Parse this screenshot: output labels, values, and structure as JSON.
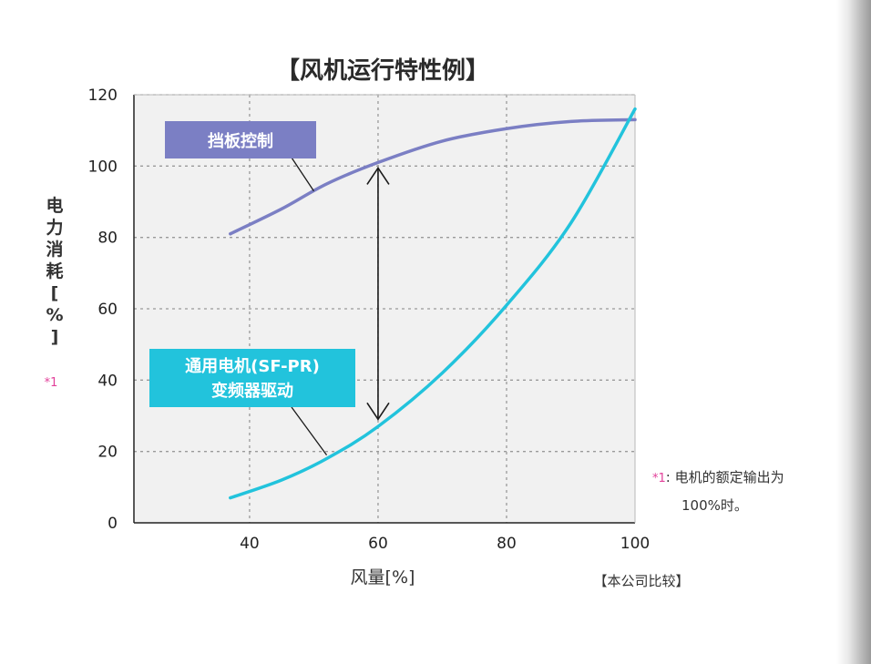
{
  "chart_data": {
    "type": "line",
    "title": "【风机运行特性例】",
    "xlabel": "风量[%]",
    "ylabel": "电力消耗[%]",
    "ylabel_note": "*1",
    "xlim": [
      22,
      100
    ],
    "ylim": [
      0,
      120
    ],
    "x_ticks": [
      40,
      60,
      80,
      100
    ],
    "y_ticks": [
      0,
      20,
      40,
      60,
      80,
      100,
      120
    ],
    "grid": true,
    "series": [
      {
        "name": "挡板控制",
        "color": "#7b7fc4",
        "x": [
          37,
          45,
          52,
          60,
          70,
          80,
          90,
          100
        ],
        "y": [
          81,
          88,
          95,
          101,
          107,
          110.5,
          112.5,
          113
        ]
      },
      {
        "name_lines": [
          "通用电机(SF-PR)",
          "变频器驱动"
        ],
        "color": "#22c3dc",
        "x": [
          37,
          45,
          52,
          60,
          70,
          80,
          90,
          100
        ],
        "y": [
          7,
          12,
          18,
          27,
          42,
          61,
          84,
          116
        ]
      }
    ],
    "arrow": {
      "x": 60,
      "y_from": 28,
      "y_to": 101
    },
    "footnote": "【本公司比较】"
  },
  "note": {
    "star": "*1",
    "line1": ": 电机的额定输出为",
    "line2": "100%时。"
  },
  "colors": {
    "plot_bg": "#f1f1f1",
    "grid": "#9a9a9a",
    "axis": "#222222",
    "note_star": "#e2409a"
  }
}
